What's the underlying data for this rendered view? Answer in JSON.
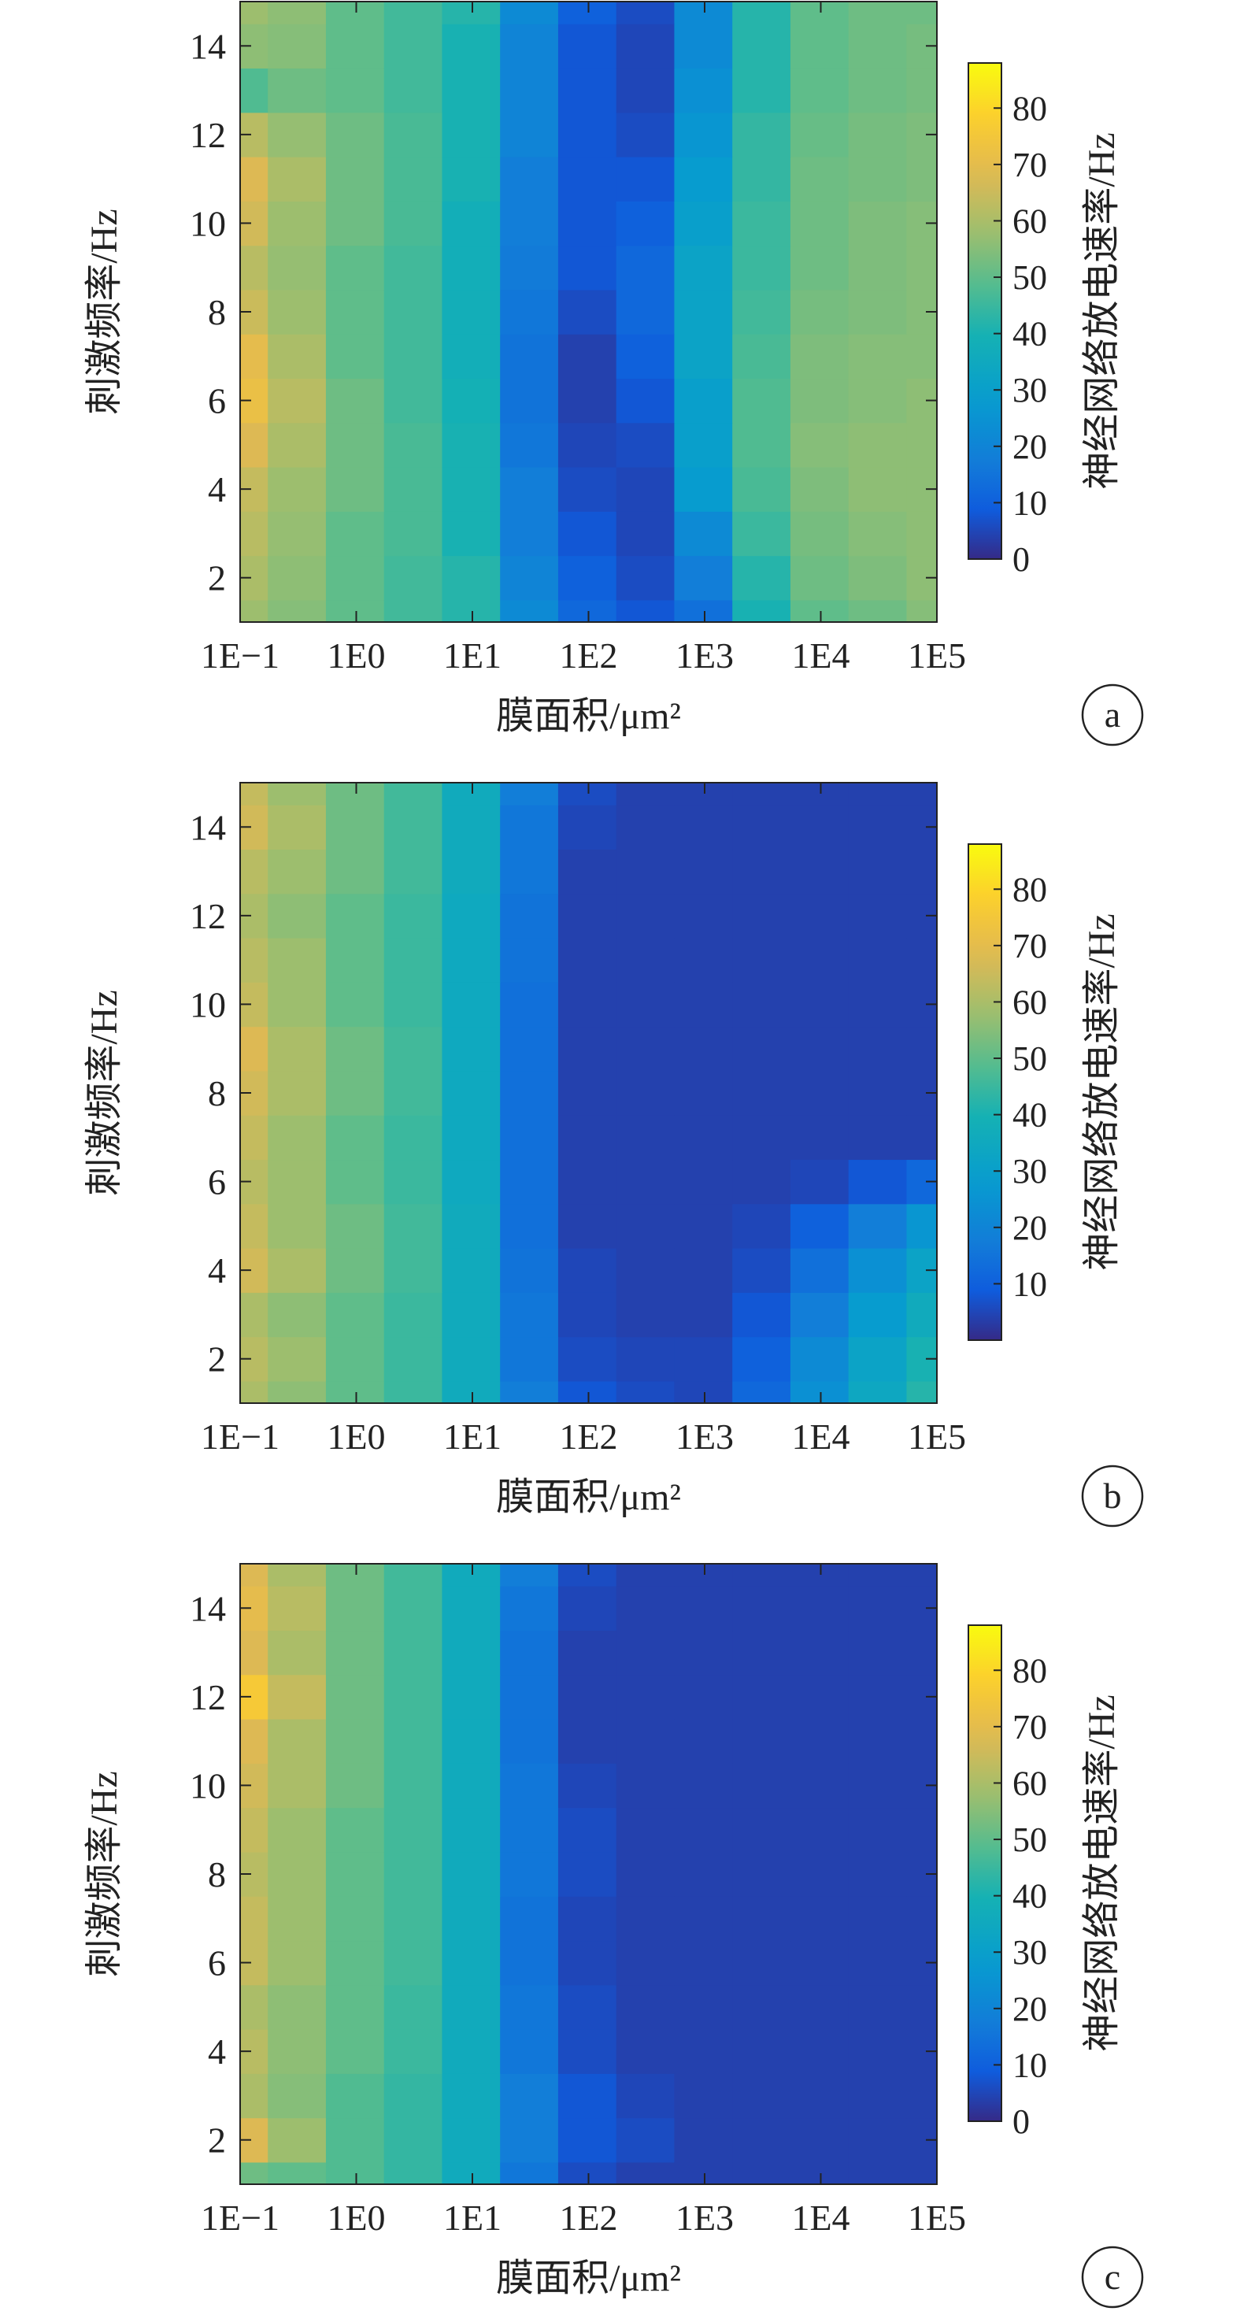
{
  "chart_data": [
    {
      "panel_label": "a",
      "type": "heatmap",
      "xlabel": "膜面积/μm²",
      "ylabel": "刺激频率/Hz",
      "colorbar_label": "神经网络放电速率/Hz",
      "x_scale": "log10",
      "xlim": [
        0.1,
        100000
      ],
      "ylim": [
        1,
        15
      ],
      "x_tick_labels": [
        "1E−1",
        "1E0",
        "1E1",
        "1E2",
        "1E3",
        "1E4",
        "1E5"
      ],
      "x_tick_values": [
        0.1,
        1,
        10,
        100,
        1000,
        10000,
        100000
      ],
      "y_ticks": [
        2,
        4,
        6,
        8,
        10,
        12,
        14
      ],
      "colorbar_ticks": [
        0,
        10,
        20,
        30,
        40,
        50,
        60,
        70,
        80
      ],
      "colorbar_range": [
        0,
        88
      ],
      "x": [
        0.1,
        0.3,
        1,
        3,
        10,
        30,
        100,
        300,
        1000,
        3000,
        10000,
        30000,
        100000
      ],
      "y": [
        1,
        2,
        3,
        4,
        5,
        6,
        7,
        8,
        9,
        10,
        11,
        12,
        13,
        14,
        15
      ],
      "z": [
        [
          58,
          55,
          50,
          46,
          42,
          22,
          12,
          8,
          14,
          40,
          50,
          52,
          55
        ],
        [
          60,
          56,
          50,
          46,
          42,
          20,
          10,
          6,
          18,
          42,
          52,
          54,
          56
        ],
        [
          62,
          57,
          50,
          47,
          40,
          18,
          8,
          5,
          22,
          45,
          53,
          55,
          56
        ],
        [
          64,
          58,
          52,
          47,
          40,
          18,
          6,
          5,
          28,
          47,
          54,
          56,
          56
        ],
        [
          68,
          60,
          52,
          47,
          40,
          16,
          5,
          6,
          30,
          48,
          55,
          56,
          56
        ],
        [
          72,
          62,
          52,
          46,
          39,
          15,
          4,
          8,
          30,
          48,
          54,
          55,
          56
        ],
        [
          70,
          60,
          50,
          46,
          38,
          15,
          4,
          10,
          32,
          47,
          54,
          55,
          55
        ],
        [
          65,
          58,
          50,
          46,
          38,
          16,
          6,
          12,
          32,
          46,
          53,
          54,
          55
        ],
        [
          62,
          57,
          50,
          46,
          38,
          17,
          8,
          12,
          32,
          45,
          52,
          54,
          55
        ],
        [
          66,
          58,
          52,
          47,
          38,
          18,
          8,
          10,
          30,
          45,
          52,
          54,
          55
        ],
        [
          68,
          60,
          52,
          47,
          40,
          18,
          8,
          8,
          28,
          44,
          52,
          53,
          54
        ],
        [
          62,
          57,
          52,
          47,
          40,
          20,
          8,
          6,
          26,
          44,
          51,
          53,
          54
        ],
        [
          48,
          52,
          50,
          46,
          40,
          20,
          8,
          5,
          24,
          42,
          50,
          52,
          53
        ],
        [
          56,
          55,
          50,
          46,
          40,
          20,
          8,
          5,
          22,
          42,
          50,
          52,
          53
        ],
        [
          58,
          56,
          50,
          46,
          42,
          22,
          10,
          6,
          22,
          42,
          50,
          52,
          52
        ]
      ]
    },
    {
      "panel_label": "b",
      "type": "heatmap",
      "xlabel": "膜面积/μm²",
      "ylabel": "刺激频率/Hz",
      "colorbar_label": "神经网络放电速率/Hz",
      "x_scale": "log10",
      "xlim": [
        0.1,
        100000
      ],
      "ylim": [
        1,
        15
      ],
      "x_tick_labels": [
        "1E−1",
        "1E0",
        "1E1",
        "1E2",
        "1E3",
        "1E4",
        "1E5"
      ],
      "x_tick_values": [
        0.1,
        1,
        10,
        100,
        1000,
        10000,
        100000
      ],
      "y_ticks": [
        2,
        4,
        6,
        8,
        10,
        12,
        14
      ],
      "colorbar_ticks": [
        10,
        20,
        30,
        40,
        50,
        60,
        70,
        80
      ],
      "colorbar_range": [
        0,
        88
      ],
      "x": [
        0.1,
        0.3,
        1,
        3,
        10,
        30,
        100,
        300,
        1000,
        3000,
        10000,
        30000,
        100000
      ],
      "y": [
        1,
        2,
        3,
        4,
        5,
        6,
        7,
        8,
        9,
        10,
        11,
        12,
        13,
        14,
        15
      ],
      "z": [
        [
          60,
          56,
          50,
          45,
          36,
          18,
          8,
          6,
          5,
          12,
          24,
          34,
          42
        ],
        [
          62,
          58,
          50,
          45,
          36,
          16,
          6,
          5,
          5,
          10,
          22,
          32,
          40
        ],
        [
          60,
          56,
          50,
          45,
          36,
          16,
          5,
          4,
          4,
          8,
          18,
          28,
          36
        ],
        [
          66,
          60,
          52,
          46,
          36,
          15,
          5,
          4,
          4,
          6,
          14,
          24,
          32
        ],
        [
          64,
          58,
          52,
          46,
          36,
          14,
          4,
          4,
          4,
          5,
          10,
          18,
          26
        ],
        [
          62,
          58,
          50,
          45,
          35,
          14,
          4,
          4,
          4,
          4,
          5,
          8,
          12
        ],
        [
          64,
          58,
          50,
          45,
          35,
          14,
          4,
          4,
          4,
          4,
          4,
          4,
          4
        ],
        [
          66,
          60,
          52,
          46,
          35,
          14,
          4,
          4,
          4,
          4,
          4,
          4,
          4
        ],
        [
          68,
          60,
          52,
          46,
          35,
          14,
          4,
          4,
          4,
          4,
          4,
          4,
          4
        ],
        [
          64,
          58,
          50,
          45,
          35,
          14,
          4,
          4,
          4,
          4,
          4,
          4,
          4
        ],
        [
          62,
          58,
          50,
          45,
          35,
          15,
          4,
          4,
          4,
          4,
          4,
          4,
          4
        ],
        [
          60,
          56,
          50,
          45,
          35,
          15,
          4,
          4,
          4,
          4,
          4,
          4,
          4
        ],
        [
          62,
          58,
          52,
          46,
          36,
          16,
          4,
          4,
          4,
          4,
          4,
          4,
          4
        ],
        [
          66,
          60,
          52,
          46,
          36,
          16,
          5,
          4,
          4,
          4,
          4,
          4,
          4
        ],
        [
          64,
          58,
          52,
          46,
          36,
          18,
          6,
          4,
          4,
          4,
          4,
          4,
          4
        ]
      ]
    },
    {
      "panel_label": "c",
      "type": "heatmap",
      "xlabel": "膜面积/μm²",
      "ylabel": "刺激频率/Hz",
      "colorbar_label": "神经网络放电速率/Hz",
      "x_scale": "log10",
      "xlim": [
        0.1,
        100000
      ],
      "ylim": [
        1,
        15
      ],
      "x_tick_labels": [
        "1E−1",
        "1E0",
        "1E1",
        "1E2",
        "1E3",
        "1E4",
        "1E5"
      ],
      "x_tick_values": [
        0.1,
        1,
        10,
        100,
        1000,
        10000,
        100000
      ],
      "y_ticks": [
        2,
        4,
        6,
        8,
        10,
        12,
        14
      ],
      "colorbar_ticks": [
        0,
        10,
        20,
        30,
        40,
        50,
        60,
        70,
        80
      ],
      "colorbar_range": [
        0,
        88
      ],
      "x": [
        0.1,
        0.3,
        1,
        3,
        10,
        30,
        100,
        300,
        1000,
        3000,
        10000,
        30000,
        100000
      ],
      "y": [
        1,
        2,
        3,
        4,
        5,
        6,
        7,
        8,
        9,
        10,
        11,
        12,
        13,
        14,
        15
      ],
      "z": [
        [
          52,
          50,
          48,
          44,
          36,
          16,
          6,
          4,
          4,
          4,
          4,
          4,
          4
        ],
        [
          68,
          58,
          48,
          44,
          36,
          18,
          8,
          6,
          4,
          4,
          4,
          4,
          4
        ],
        [
          60,
          55,
          48,
          44,
          36,
          18,
          8,
          5,
          4,
          4,
          4,
          4,
          4
        ],
        [
          62,
          56,
          50,
          45,
          36,
          16,
          6,
          4,
          4,
          4,
          4,
          4,
          4
        ],
        [
          60,
          56,
          50,
          45,
          36,
          16,
          6,
          4,
          4,
          4,
          4,
          4,
          4
        ],
        [
          64,
          58,
          50,
          46,
          36,
          15,
          5,
          4,
          4,
          4,
          4,
          4,
          4
        ],
        [
          64,
          58,
          50,
          46,
          36,
          15,
          5,
          4,
          4,
          4,
          4,
          4,
          4
        ],
        [
          62,
          58,
          50,
          46,
          36,
          16,
          6,
          4,
          4,
          4,
          4,
          4,
          4
        ],
        [
          64,
          58,
          50,
          46,
          36,
          16,
          6,
          4,
          4,
          4,
          4,
          4,
          4
        ],
        [
          66,
          60,
          52,
          46,
          36,
          16,
          5,
          4,
          4,
          4,
          4,
          4,
          4
        ],
        [
          68,
          60,
          52,
          46,
          36,
          15,
          4,
          4,
          4,
          4,
          4,
          4,
          4
        ],
        [
          76,
          64,
          52,
          46,
          36,
          15,
          4,
          4,
          4,
          4,
          4,
          4,
          4
        ],
        [
          68,
          60,
          52,
          46,
          36,
          15,
          4,
          4,
          4,
          4,
          4,
          4,
          4
        ],
        [
          70,
          62,
          52,
          46,
          36,
          16,
          5,
          4,
          4,
          4,
          4,
          4,
          4
        ],
        [
          68,
          60,
          52,
          46,
          36,
          18,
          6,
          4,
          4,
          4,
          4,
          4,
          4
        ]
      ]
    }
  ]
}
